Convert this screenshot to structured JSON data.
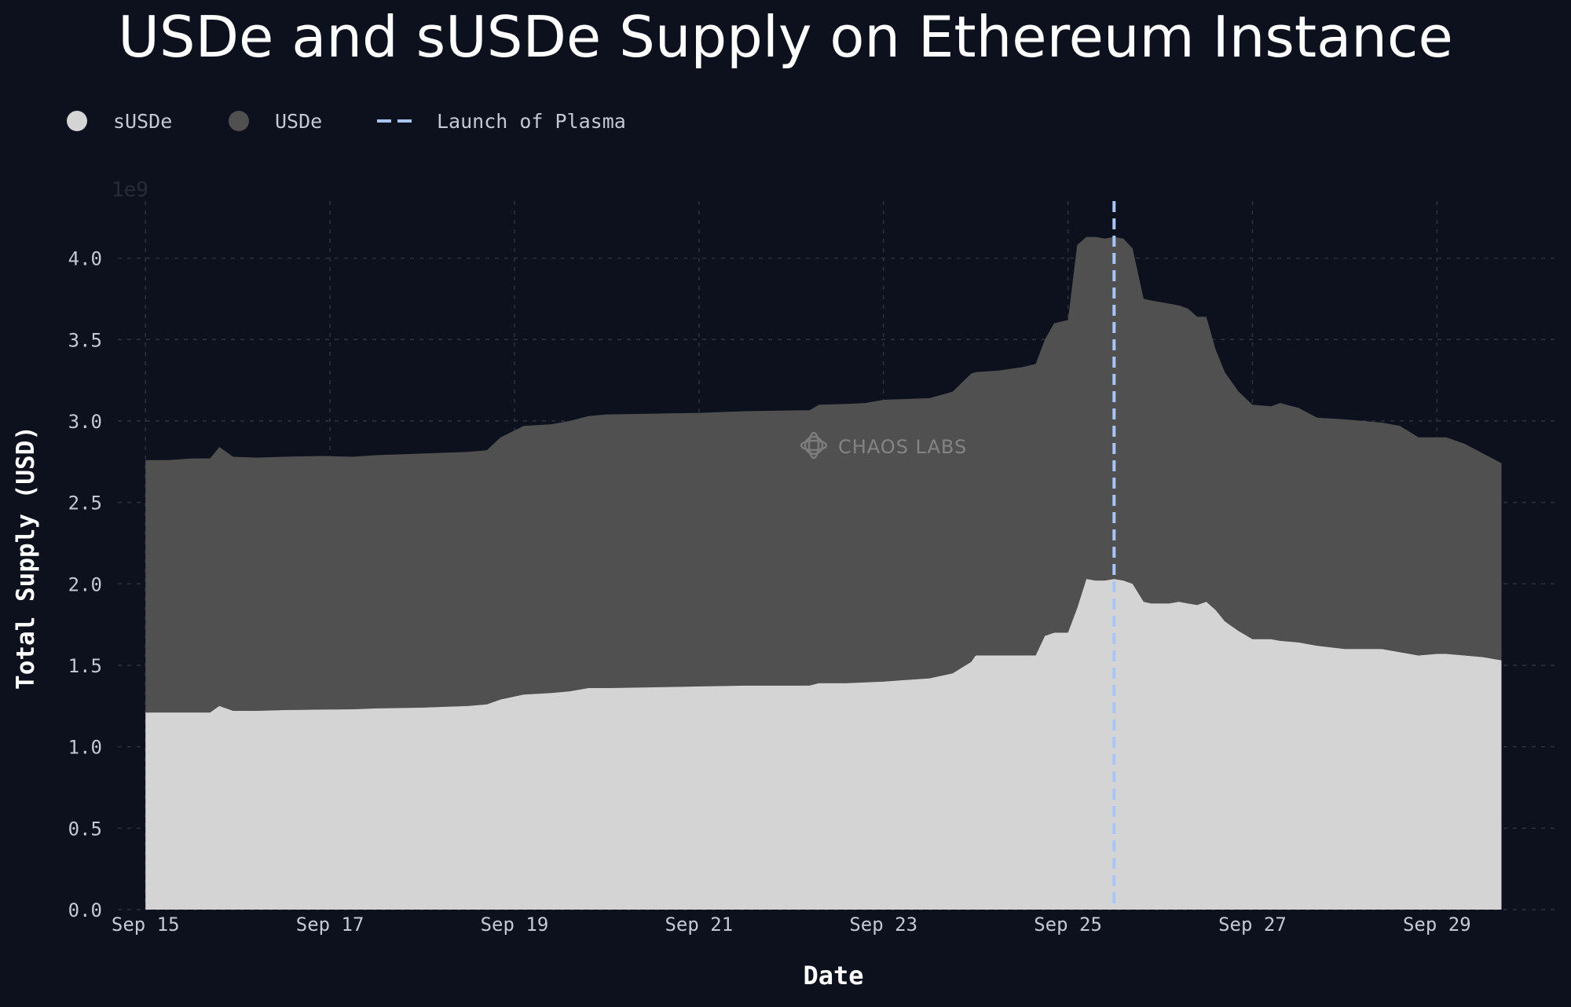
{
  "chart_data": {
    "type": "area",
    "stacked": true,
    "title": "USDe and sUSDe Supply on Ethereum Instance",
    "xlabel": "Date",
    "ylabel": "Total Supply (USD)",
    "y_offset_label": "1e9",
    "watermark": "CHAOS LABS",
    "x_ticks": [
      "Sep 15",
      "Sep 17",
      "Sep 19",
      "Sep 21",
      "Sep 23",
      "Sep 25",
      "Sep 27",
      "Sep 29"
    ],
    "y_ticks": [
      "0.0",
      "0.5",
      "1.0",
      "1.5",
      "2.0",
      "2.5",
      "3.0",
      "3.5",
      "4.0"
    ],
    "ylim": [
      0,
      4.35
    ],
    "xlim_days": [
      14.7,
      30.3
    ],
    "grid": true,
    "legend_position": "top-left",
    "legend": [
      {
        "label": "sUSDe",
        "type": "dot",
        "color": "#d4d4d4"
      },
      {
        "label": "USDe",
        "type": "dot",
        "color": "#505050"
      },
      {
        "label": "Launch of Plasma",
        "type": "dashed-line",
        "color": "#a8c5f5"
      }
    ],
    "launch_marker_day": 25.5,
    "series": [
      {
        "name": "sUSDe",
        "color": "#d4d4d4",
        "x": [
          15,
          15.25,
          15.5,
          15.7,
          15.8,
          15.95,
          16.2,
          16.5,
          16.9,
          17.25,
          17.5,
          18.0,
          18.5,
          18.7,
          18.85,
          19.1,
          19.4,
          19.6,
          19.8,
          20.0,
          20.5,
          21.0,
          21.5,
          22.0,
          22.2,
          22.3,
          22.6,
          22.8,
          23.0,
          23.5,
          23.75,
          23.95,
          24.0,
          24.25,
          24.5,
          24.65,
          24.75,
          24.85,
          25.0,
          25.1,
          25.2,
          25.3,
          25.4,
          25.5,
          25.6,
          25.7,
          25.82,
          25.9,
          26.1,
          26.2,
          26.3,
          26.4,
          26.5,
          26.6,
          26.7,
          26.85,
          27.0,
          27.2,
          27.3,
          27.5,
          27.7,
          28.0,
          28.4,
          28.6,
          28.8,
          29.0,
          29.1,
          29.3,
          29.5,
          29.7
        ],
        "values": [
          1.21,
          1.21,
          1.21,
          1.21,
          1.25,
          1.22,
          1.22,
          1.225,
          1.228,
          1.23,
          1.235,
          1.24,
          1.25,
          1.26,
          1.29,
          1.32,
          1.33,
          1.34,
          1.36,
          1.36,
          1.365,
          1.37,
          1.375,
          1.375,
          1.376,
          1.39,
          1.39,
          1.395,
          1.4,
          1.42,
          1.45,
          1.52,
          1.56,
          1.56,
          1.56,
          1.56,
          1.68,
          1.7,
          1.7,
          1.85,
          2.03,
          2.02,
          2.02,
          2.03,
          2.02,
          2.0,
          1.89,
          1.88,
          1.88,
          1.89,
          1.88,
          1.87,
          1.89,
          1.84,
          1.77,
          1.71,
          1.66,
          1.66,
          1.65,
          1.64,
          1.62,
          1.6,
          1.6,
          1.58,
          1.56,
          1.57,
          1.57,
          1.56,
          1.55,
          1.53
        ]
      },
      {
        "name": "USDe",
        "color": "#505050",
        "x": [
          15,
          15.25,
          15.5,
          15.7,
          15.8,
          15.95,
          16.2,
          16.5,
          16.9,
          17.25,
          17.5,
          18.0,
          18.5,
          18.7,
          18.85,
          19.1,
          19.4,
          19.6,
          19.8,
          20.0,
          20.5,
          21.0,
          21.5,
          22.0,
          22.2,
          22.3,
          22.6,
          22.8,
          23.0,
          23.5,
          23.75,
          23.95,
          24.0,
          24.25,
          24.5,
          24.65,
          24.75,
          24.85,
          25.0,
          25.1,
          25.2,
          25.3,
          25.4,
          25.5,
          25.6,
          25.7,
          25.82,
          25.9,
          26.1,
          26.2,
          26.3,
          26.4,
          26.5,
          26.6,
          26.7,
          26.85,
          27.0,
          27.2,
          27.3,
          27.5,
          27.7,
          28.0,
          28.4,
          28.6,
          28.8,
          29.0,
          29.1,
          29.3,
          29.5,
          29.7
        ],
        "values": [
          1.55,
          1.55,
          1.56,
          1.56,
          1.59,
          1.56,
          1.555,
          1.555,
          1.557,
          1.55,
          1.555,
          1.56,
          1.56,
          1.56,
          1.61,
          1.65,
          1.65,
          1.66,
          1.67,
          1.68,
          1.68,
          1.68,
          1.685,
          1.69,
          1.69,
          1.71,
          1.715,
          1.715,
          1.73,
          1.72,
          1.73,
          1.77,
          1.74,
          1.75,
          1.77,
          1.79,
          1.82,
          1.9,
          1.92,
          2.23,
          2.1,
          2.11,
          2.1,
          2.1,
          2.1,
          2.06,
          1.86,
          1.86,
          1.84,
          1.82,
          1.81,
          1.77,
          1.75,
          1.6,
          1.53,
          1.47,
          1.44,
          1.43,
          1.46,
          1.44,
          1.4,
          1.41,
          1.39,
          1.39,
          1.34,
          1.33,
          1.33,
          1.3,
          1.25,
          1.21
        ]
      }
    ]
  }
}
